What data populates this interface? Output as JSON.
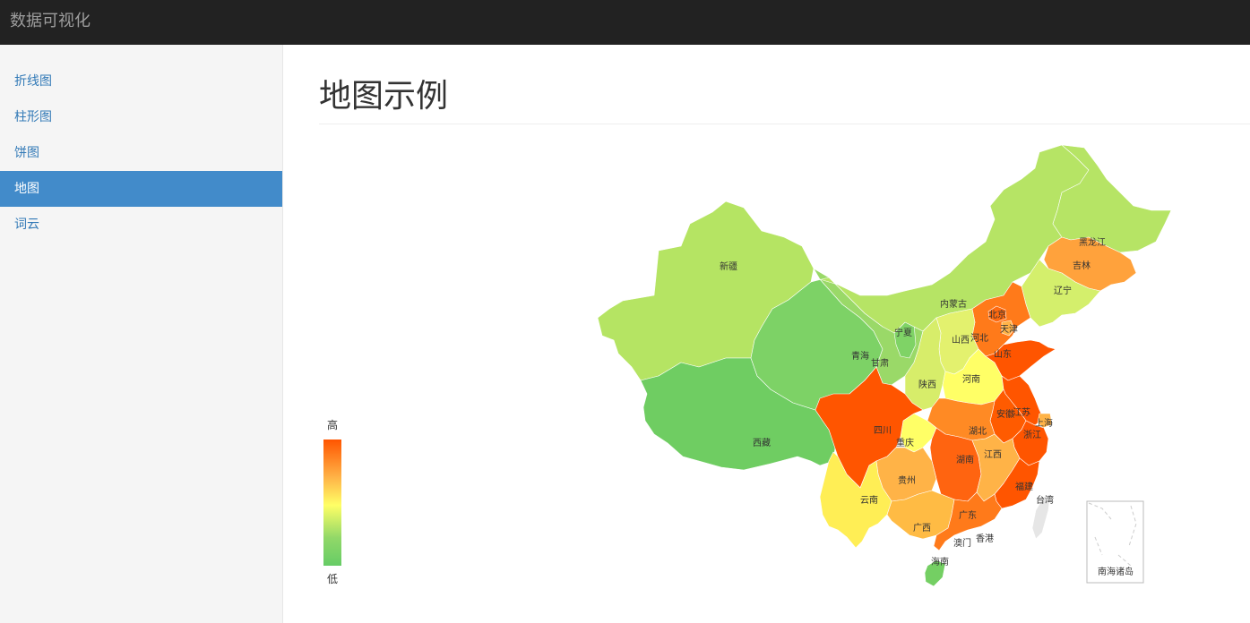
{
  "navbar": {
    "brand": "数据可视化"
  },
  "sidebar": {
    "items": [
      {
        "label": "折线图",
        "active": false
      },
      {
        "label": "柱形图",
        "active": false
      },
      {
        "label": "饼图",
        "active": false
      },
      {
        "label": "地图",
        "active": true
      },
      {
        "label": "词云",
        "active": false
      }
    ]
  },
  "main": {
    "title": "地图示例"
  },
  "visual_map": {
    "high_label": "高",
    "low_label": "低",
    "colors": [
      "#ff5500",
      "#ffb347",
      "#ffff66",
      "#91d868",
      "#66cc66"
    ]
  },
  "map": {
    "inset_label": "南海诸岛",
    "provinces": [
      {
        "name": "新疆",
        "level": "low"
      },
      {
        "name": "西藏",
        "level": "lowest"
      },
      {
        "name": "青海",
        "level": "lowest"
      },
      {
        "name": "甘肃",
        "level": "low"
      },
      {
        "name": "宁夏",
        "level": "lowest"
      },
      {
        "name": "内蒙古",
        "level": "low"
      },
      {
        "name": "黑龙江",
        "level": "low"
      },
      {
        "name": "吉林",
        "level": "mid-high"
      },
      {
        "name": "辽宁",
        "level": "low-mid"
      },
      {
        "name": "北京",
        "level": "high"
      },
      {
        "name": "天津",
        "level": "mid-high"
      },
      {
        "name": "河北",
        "level": "high"
      },
      {
        "name": "山西",
        "level": "low-mid"
      },
      {
        "name": "山东",
        "level": "highest"
      },
      {
        "name": "河南",
        "level": "mid"
      },
      {
        "name": "陕西",
        "level": "low-mid"
      },
      {
        "name": "四川",
        "level": "highest"
      },
      {
        "name": "重庆",
        "level": "mid"
      },
      {
        "name": "湖北",
        "level": "high"
      },
      {
        "name": "安徽",
        "level": "highest"
      },
      {
        "name": "江苏",
        "level": "highest"
      },
      {
        "name": "上海",
        "level": "mid-high"
      },
      {
        "name": "浙江",
        "level": "highest"
      },
      {
        "name": "湖南",
        "level": "highest"
      },
      {
        "name": "江西",
        "level": "mid-high"
      },
      {
        "name": "福建",
        "level": "highest"
      },
      {
        "name": "贵州",
        "level": "mid-high"
      },
      {
        "name": "云南",
        "level": "mid"
      },
      {
        "name": "广西",
        "level": "mid-high"
      },
      {
        "name": "广东",
        "level": "high"
      },
      {
        "name": "海南",
        "level": "lowest"
      },
      {
        "name": "台湾",
        "level": "none"
      },
      {
        "name": "香港",
        "level": "none"
      },
      {
        "name": "澳门",
        "level": "none"
      }
    ]
  }
}
